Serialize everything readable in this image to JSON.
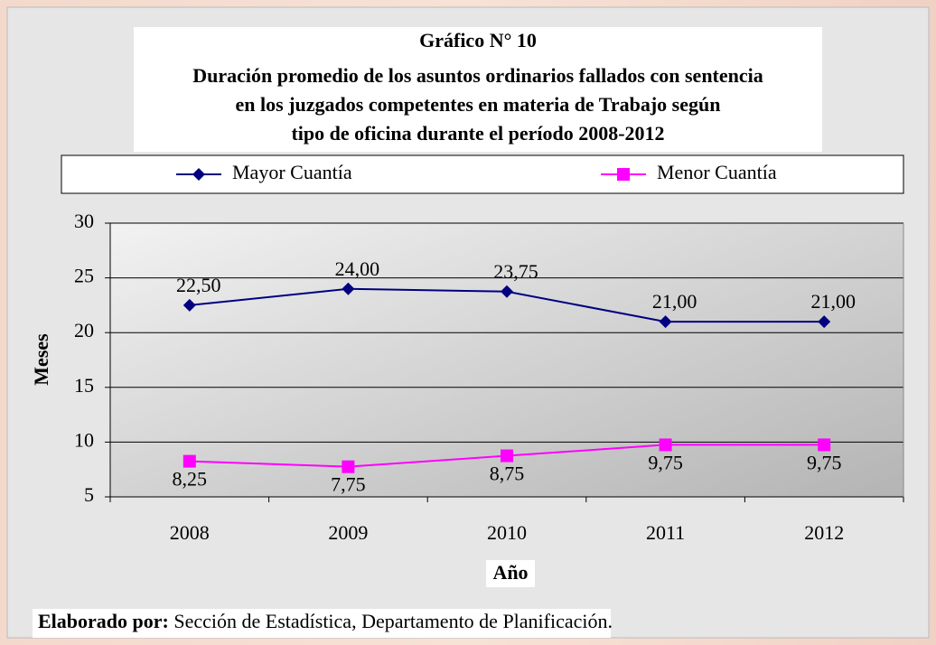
{
  "chart_data": {
    "type": "line",
    "title": [
      "Gráfico N° 10",
      "Duración promedio de los asuntos ordinarios fallados con sentencia",
      "en los juzgados competentes en materia de Trabajo según",
      "tipo de oficina durante el período 2008-2012"
    ],
    "x_label": "Año",
    "y_label": "Meses",
    "categories": [
      "2008",
      "2009",
      "2010",
      "2011",
      "2012"
    ],
    "series": [
      {
        "name": "Mayor Cuantía",
        "color": "#000080",
        "marker": "diamond",
        "values": [
          22.5,
          24,
          23.75,
          21,
          21
        ],
        "value_labels": [
          "22,50",
          "24,00",
          "23,75",
          "21,00",
          "21,00"
        ]
      },
      {
        "name": "Menor Cuantía",
        "color": "#ff00ff",
        "marker": "square",
        "values": [
          8.25,
          7.75,
          8.75,
          9.75,
          9.75
        ],
        "value_labels": [
          "8,25",
          "7,75",
          "8,75",
          "9,75",
          "9,75"
        ]
      }
    ],
    "ylim": [
      5,
      30
    ],
    "yticks": [
      5,
      10,
      15,
      20,
      25,
      30
    ],
    "grid": true,
    "legend": "top"
  },
  "footer": {
    "label": "Elaborado por:",
    "text": "Sección de Estadística, Departamento de Planificación."
  }
}
